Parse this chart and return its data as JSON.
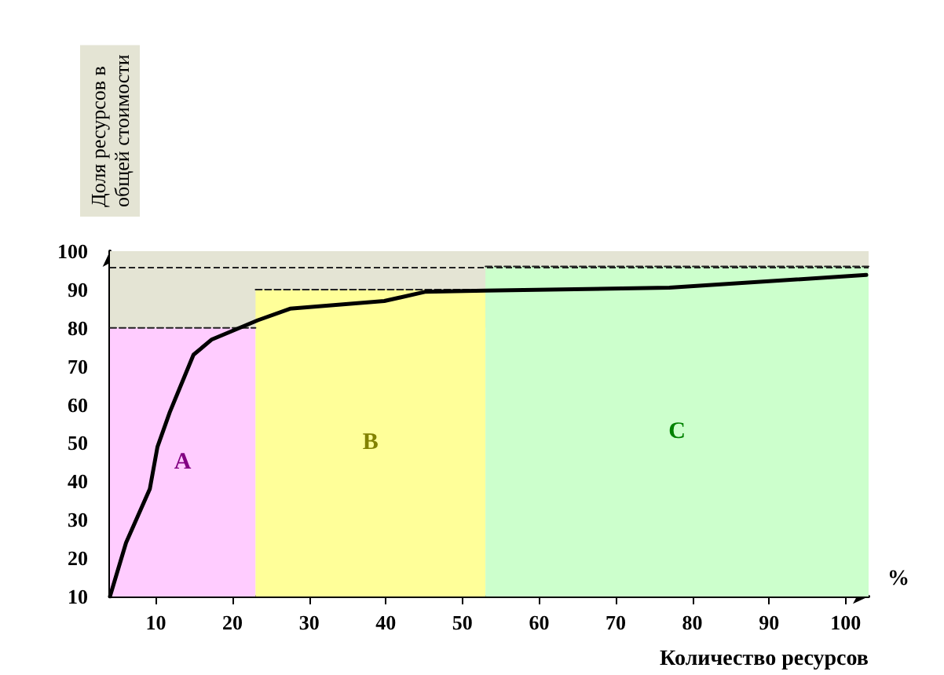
{
  "chart_data": {
    "type": "line",
    "xlabel": "Количество ресурсов",
    "ylabel": "Доля ресурсов в общей стоимости",
    "annotations": [
      "%"
    ],
    "xlim": [
      4,
      103
    ],
    "xticks": [
      10,
      20,
      30,
      40,
      50,
      60,
      70,
      80,
      90,
      100
    ],
    "ylim": [
      10,
      100
    ],
    "yticks": [
      10,
      20,
      30,
      40,
      50,
      60,
      70,
      80,
      90,
      100
    ],
    "grid": false,
    "legend": false,
    "marker": "none",
    "bands": [
      {
        "axis": "y",
        "from": 80,
        "to": 100,
        "color": "#e4e4d4"
      }
    ],
    "ref_lines": [
      {
        "axis": "y",
        "value": 96,
        "line_style": "dashed",
        "color": "#222222"
      }
    ],
    "series": [
      {
        "name": "A",
        "type": "area",
        "color": "#ffccff",
        "line_style": "dashed",
        "x": [
          4,
          23
        ],
        "values": [
          80,
          80
        ]
      },
      {
        "name": "B",
        "type": "area",
        "color": "#ffff99",
        "line_style": "dashed",
        "x": [
          23,
          53
        ],
        "values": [
          90,
          90
        ]
      },
      {
        "name": "C",
        "type": "area",
        "color": "#ccffcc",
        "line_style": "dashed",
        "x": [
          53,
          103
        ],
        "values": [
          96,
          96
        ]
      },
      {
        "color": "#000000",
        "line_style": "solid",
        "x": [
          4,
          6.1,
          9.2,
          10.2,
          11.8,
          14.9,
          17.3,
          23.3,
          27.5,
          39.8,
          45.1,
          53,
          77,
          102.7
        ],
        "values": [
          10,
          24,
          38,
          49,
          58,
          73,
          77,
          82,
          85,
          87,
          89.4,
          89.7,
          90.5,
          93.8
        ]
      }
    ]
  }
}
